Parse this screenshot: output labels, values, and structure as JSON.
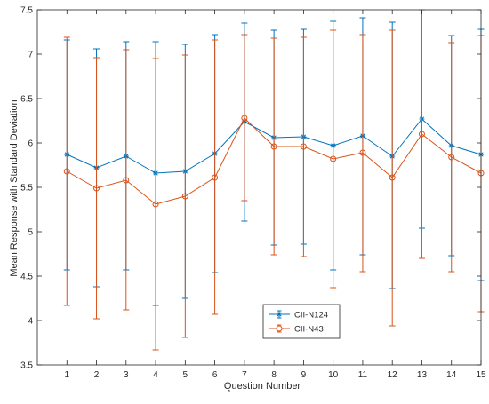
{
  "chart_data": {
    "type": "line",
    "title": "",
    "xlabel": "Question Number",
    "ylabel": "Mean Response with Standard Deviation",
    "xlim": [
      0,
      15
    ],
    "ylim": [
      3.5,
      7.5
    ],
    "xticks": [
      1,
      2,
      3,
      4,
      5,
      6,
      7,
      8,
      9,
      10,
      11,
      12,
      13,
      14,
      15
    ],
    "xtick_labels": [
      "1",
      "2",
      "3",
      "4",
      "5",
      "6",
      "7",
      "8",
      "9",
      "10",
      "11",
      "12",
      "13",
      "14",
      "15"
    ],
    "yticks": [
      3.5,
      4,
      4.5,
      5,
      5.5,
      6,
      6.5,
      7,
      7.5
    ],
    "ytick_labels": [
      "3.5",
      "4",
      "4.5",
      "5",
      "5.5",
      "6",
      "6.5",
      "7",
      "7.5"
    ],
    "grid": false,
    "legend_position": "bottom-center",
    "series": [
      {
        "name": "CII-N124",
        "color": "#0072BD",
        "marker": "asterisk",
        "x": [
          1,
          2,
          3,
          4,
          5,
          6,
          7,
          8,
          9,
          10,
          11,
          12,
          13,
          14,
          15
        ],
        "values": [
          5.87,
          5.72,
          5.85,
          5.66,
          5.68,
          5.88,
          6.24,
          6.06,
          6.07,
          5.97,
          6.08,
          5.85,
          6.27,
          5.97,
          5.87
        ],
        "lower": [
          4.57,
          4.38,
          4.57,
          4.17,
          4.25,
          4.54,
          5.12,
          4.85,
          4.86,
          4.57,
          4.74,
          4.36,
          5.04,
          4.73,
          4.45
        ],
        "upper": [
          7.16,
          7.06,
          7.14,
          7.14,
          7.11,
          7.22,
          7.35,
          7.27,
          7.28,
          7.37,
          7.41,
          7.36,
          7.5,
          7.21,
          7.28
        ]
      },
      {
        "name": "CII-N43",
        "color": "#D95319",
        "marker": "circle",
        "x": [
          1,
          2,
          3,
          4,
          5,
          6,
          7,
          8,
          9,
          10,
          11,
          12,
          13,
          14,
          15
        ],
        "values": [
          5.68,
          5.49,
          5.58,
          5.31,
          5.4,
          5.61,
          6.28,
          5.96,
          5.96,
          5.82,
          5.89,
          5.61,
          6.1,
          5.84,
          5.66
        ],
        "lower": [
          4.17,
          4.02,
          4.12,
          3.67,
          3.81,
          4.07,
          5.35,
          4.74,
          4.72,
          4.37,
          4.55,
          3.94,
          4.7,
          4.55,
          4.1
        ],
        "upper": [
          7.19,
          6.96,
          7.05,
          6.95,
          6.99,
          7.16,
          7.22,
          7.18,
          7.19,
          7.27,
          7.22,
          7.27,
          7.5,
          7.13,
          7.21
        ]
      }
    ]
  }
}
